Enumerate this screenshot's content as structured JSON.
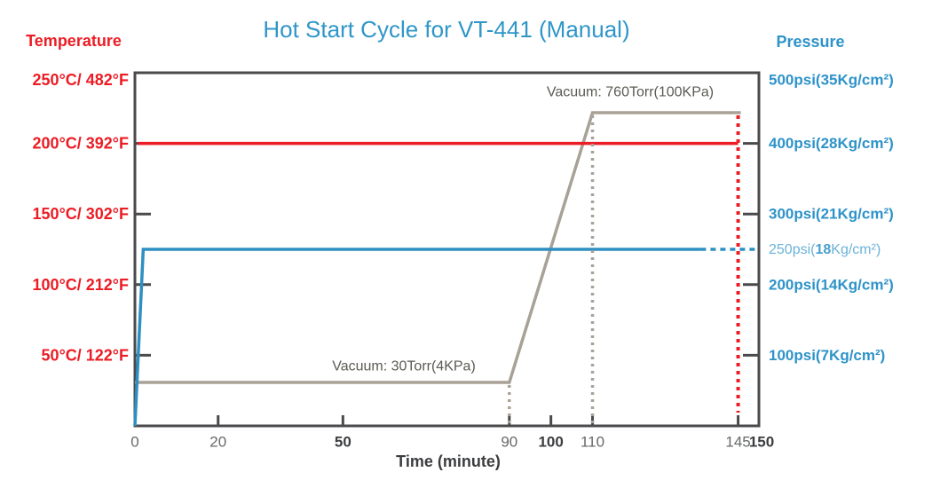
{
  "title": "Hot Start Cycle for VT-441 (Manual)",
  "left_axis": {
    "header": "Temperature",
    "labels": [
      {
        "value": 250,
        "text": "250°C/ 482°F"
      },
      {
        "value": 200,
        "text": "200°C/ 392°F"
      },
      {
        "value": 150,
        "text": "150°C/ 302°F"
      },
      {
        "value": 100,
        "text": "100°C/ 212°F"
      },
      {
        "value": 50,
        "text": "50°C/ 122°F"
      }
    ],
    "tick_values": [
      200,
      150,
      100,
      50
    ],
    "range_C": [
      0,
      250
    ]
  },
  "right_axis": {
    "header": "Pressure",
    "labels": [
      {
        "value": 500,
        "text": "500psi(35Kg/cm²)"
      },
      {
        "value": 400,
        "text": "400psi(28Kg/cm²)"
      },
      {
        "value": 300,
        "text": "300psi(21Kg/cm²)"
      },
      {
        "value": 250,
        "pre": "250psi(",
        "bold_part": "18",
        "post": "Kg/cm²)",
        "light": true
      },
      {
        "value": 200,
        "text": "200psi(14Kg/cm²)"
      },
      {
        "value": 100,
        "text": "100psi(7Kg/cm²)"
      }
    ],
    "tick_values": [
      400,
      300,
      200,
      100
    ],
    "range_psi": [
      0,
      500
    ]
  },
  "x_axis": {
    "label": "Time (minute)",
    "ticks": [
      {
        "value": 0,
        "text": "0",
        "bold": false
      },
      {
        "value": 20,
        "text": "20",
        "bold": false
      },
      {
        "value": 50,
        "text": "50",
        "bold": true
      },
      {
        "value": 90,
        "text": "90",
        "bold": false
      },
      {
        "value": 100,
        "text": "100",
        "bold": true
      },
      {
        "value": 110,
        "text": "110",
        "bold": false
      },
      {
        "value": 145,
        "text": "145",
        "bold": false
      },
      {
        "value": 150,
        "text": "150",
        "bold": true
      }
    ],
    "range_min": [
      0,
      150
    ]
  },
  "annotations": {
    "vacuum_high": "Vacuum: 760Torr(100KPa)",
    "vacuum_low": "Vacuum: 30Torr(4KPa)"
  },
  "colors": {
    "title_blue": "#2f96c8",
    "temperature_red": "#ec1c24",
    "pressure_blue": "#2e93c9",
    "pressure_light_blue": "#6cb2d8",
    "pressure_light_bold_blue": "#4aa0cf",
    "vacuum_gray": "#a8a196",
    "annotation_gray": "#5a5b53",
    "axis_frame": "#4a4a4c",
    "tick_label": "#68696b",
    "tick_label_bold": "#3c3d3f"
  },
  "chart_data": {
    "type": "line",
    "title": "Hot Start Cycle for VT-441 (Manual)",
    "xlabel": "Time (minute)",
    "xlim": [
      0,
      150
    ],
    "x_ticks": [
      0,
      20,
      50,
      90,
      100,
      110,
      145,
      150
    ],
    "grid": false,
    "legend_position": "none",
    "left_axis_ticks_C": [
      250,
      200,
      150,
      100,
      50
    ],
    "right_axis_ticks_psi": [
      500,
      400,
      300,
      250,
      200,
      100
    ],
    "series": [
      {
        "name": "Temperature",
        "unit": "°C",
        "color": "#ec1c24",
        "style": "solid",
        "points": [
          [
            0.7,
            200
          ],
          [
            145,
            200
          ]
        ],
        "description": "Constant 200°C/392°F from 0 to 145 min; red dotted vertical marks 145 min"
      },
      {
        "name": "Pressure",
        "unit": "psi",
        "color": "#2e8fc2",
        "style": "solid-then-dashed",
        "points": [
          [
            0,
            0
          ],
          [
            2,
            250
          ],
          [
            136,
            250
          ]
        ],
        "dashed_points": [
          [
            136,
            250
          ],
          [
            150,
            250
          ]
        ],
        "description": "Ramps immediately to 250psi(18Kg/cm²) and holds; dashed tail points to the 250psi axis label"
      },
      {
        "name": "Vacuum",
        "unit": "Torr",
        "color": "#a8a196",
        "style": "solid",
        "points": [
          [
            0,
            30
          ],
          [
            90,
            30
          ],
          [
            110,
            760
          ],
          [
            145,
            760
          ]
        ],
        "description": "30Torr(4KPa) from 0–90 min, ramps to 760Torr(100KPa) at 110 min, holds to 145 min"
      }
    ],
    "reference_lines": [
      {
        "x": 90,
        "style": "dotted",
        "color": "#a8a196"
      },
      {
        "x": 110,
        "style": "dotted",
        "color": "#a8a196"
      },
      {
        "x": 145,
        "style": "dotted",
        "color": "#ec1c24"
      }
    ]
  }
}
